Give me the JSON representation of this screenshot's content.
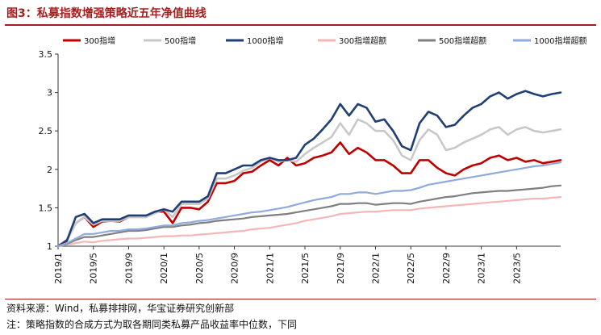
{
  "figure": {
    "title": "图3：私募指数增强策略近五年净值曲线",
    "source": "资料来源：Wind，私募排排网，华宝证券研究创新部",
    "note": "注：策略指数的合成方式为取各期同类私募产品收益率中位数，下同"
  },
  "chart_data": {
    "type": "line",
    "x_dates": [
      "2019/1",
      "2019/2",
      "2019/3",
      "2019/4",
      "2019/5",
      "2019/6",
      "2019/7",
      "2019/8",
      "2019/9",
      "2019/10",
      "2019/11",
      "2019/12",
      "2020/1",
      "2020/2",
      "2020/3",
      "2020/4",
      "2020/5",
      "2020/6",
      "2020/7",
      "2020/8",
      "2020/9",
      "2020/10",
      "2020/11",
      "2020/12",
      "2021/1",
      "2021/2",
      "2021/3",
      "2021/4",
      "2021/5",
      "2021/6",
      "2021/7",
      "2021/8",
      "2021/9",
      "2021/10",
      "2021/11",
      "2021/12",
      "2022/1",
      "2022/2",
      "2022/3",
      "2022/4",
      "2022/5",
      "2022/6",
      "2022/7",
      "2022/8",
      "2022/9",
      "2022/10",
      "2022/11",
      "2022/12",
      "2023/1",
      "2023/2",
      "2023/3",
      "2023/4",
      "2023/5",
      "2023/6",
      "2023/7",
      "2023/8",
      "2023/9",
      "2023/10"
    ],
    "x_tick_labels": [
      "2019/1",
      "2019/5",
      "2019/9",
      "2020/1",
      "2020/5",
      "2020/9",
      "2021/1",
      "2021/5",
      "2021/9",
      "2022/1",
      "2022/5",
      "2022/9",
      "2023/1",
      "2023/5"
    ],
    "ylim": [
      1,
      3.5
    ],
    "y_ticks": [
      "1",
      "1.5",
      "2",
      "2.5",
      "3",
      "3.5"
    ],
    "legend_position": "top",
    "grid": false,
    "series": [
      {
        "name": "300指增",
        "color": "#c00000",
        "values": [
          1.0,
          1.08,
          1.3,
          1.38,
          1.25,
          1.32,
          1.33,
          1.32,
          1.38,
          1.38,
          1.38,
          1.45,
          1.45,
          1.3,
          1.5,
          1.5,
          1.48,
          1.58,
          1.82,
          1.82,
          1.85,
          1.95,
          1.97,
          2.05,
          2.12,
          2.05,
          2.15,
          2.05,
          2.08,
          2.15,
          2.18,
          2.22,
          2.35,
          2.2,
          2.28,
          2.22,
          2.12,
          2.12,
          2.05,
          1.95,
          1.95,
          2.12,
          2.12,
          2.02,
          1.95,
          1.92,
          2.0,
          2.05,
          2.08,
          2.15,
          2.18,
          2.12,
          2.15,
          2.1,
          2.12,
          2.08,
          2.1,
          2.12
        ]
      },
      {
        "name": "500指增",
        "color": "#c8c8c8",
        "values": [
          1.0,
          1.07,
          1.3,
          1.38,
          1.28,
          1.33,
          1.33,
          1.33,
          1.38,
          1.38,
          1.38,
          1.43,
          1.48,
          1.38,
          1.55,
          1.55,
          1.55,
          1.62,
          1.88,
          1.88,
          1.92,
          1.98,
          2.02,
          2.1,
          2.15,
          2.1,
          2.12,
          2.1,
          2.2,
          2.28,
          2.35,
          2.42,
          2.6,
          2.45,
          2.65,
          2.6,
          2.5,
          2.5,
          2.38,
          2.18,
          2.12,
          2.38,
          2.52,
          2.45,
          2.25,
          2.28,
          2.35,
          2.4,
          2.45,
          2.52,
          2.55,
          2.45,
          2.52,
          2.55,
          2.5,
          2.48,
          2.5,
          2.52
        ]
      },
      {
        "name": "1000指增",
        "color": "#1f3f75",
        "values": [
          1.0,
          1.07,
          1.38,
          1.42,
          1.3,
          1.35,
          1.35,
          1.35,
          1.4,
          1.4,
          1.4,
          1.45,
          1.48,
          1.45,
          1.58,
          1.58,
          1.58,
          1.65,
          1.95,
          1.95,
          2.0,
          2.05,
          2.05,
          2.12,
          2.15,
          2.12,
          2.12,
          2.15,
          2.32,
          2.4,
          2.52,
          2.65,
          2.85,
          2.7,
          2.85,
          2.8,
          2.62,
          2.65,
          2.5,
          2.3,
          2.25,
          2.6,
          2.75,
          2.7,
          2.55,
          2.58,
          2.7,
          2.8,
          2.85,
          2.95,
          3.0,
          2.92,
          2.98,
          3.02,
          2.98,
          2.95,
          2.98,
          3.0
        ]
      },
      {
        "name": "300指增超额",
        "color": "#f4b6b6",
        "values": [
          1.0,
          1.02,
          1.04,
          1.06,
          1.05,
          1.07,
          1.08,
          1.09,
          1.1,
          1.1,
          1.11,
          1.12,
          1.13,
          1.13,
          1.14,
          1.14,
          1.15,
          1.16,
          1.17,
          1.18,
          1.19,
          1.2,
          1.22,
          1.23,
          1.24,
          1.26,
          1.28,
          1.3,
          1.33,
          1.35,
          1.37,
          1.39,
          1.42,
          1.43,
          1.44,
          1.45,
          1.45,
          1.46,
          1.47,
          1.47,
          1.47,
          1.49,
          1.5,
          1.51,
          1.52,
          1.53,
          1.54,
          1.55,
          1.56,
          1.57,
          1.58,
          1.59,
          1.6,
          1.61,
          1.62,
          1.62,
          1.63,
          1.64
        ]
      },
      {
        "name": "500指增超额",
        "color": "#7f7f7f",
        "values": [
          1.0,
          1.03,
          1.08,
          1.12,
          1.12,
          1.14,
          1.16,
          1.18,
          1.2,
          1.2,
          1.21,
          1.23,
          1.25,
          1.25,
          1.27,
          1.28,
          1.3,
          1.31,
          1.33,
          1.34,
          1.35,
          1.36,
          1.38,
          1.39,
          1.4,
          1.41,
          1.42,
          1.44,
          1.46,
          1.48,
          1.5,
          1.52,
          1.55,
          1.55,
          1.56,
          1.56,
          1.54,
          1.55,
          1.56,
          1.56,
          1.55,
          1.58,
          1.6,
          1.62,
          1.64,
          1.65,
          1.67,
          1.69,
          1.7,
          1.71,
          1.72,
          1.72,
          1.73,
          1.74,
          1.75,
          1.76,
          1.78,
          1.79
        ]
      },
      {
        "name": "1000指增超额",
        "color": "#8faadc",
        "values": [
          1.0,
          1.04,
          1.1,
          1.16,
          1.16,
          1.18,
          1.2,
          1.2,
          1.22,
          1.22,
          1.23,
          1.25,
          1.27,
          1.27,
          1.3,
          1.31,
          1.33,
          1.34,
          1.36,
          1.38,
          1.4,
          1.42,
          1.44,
          1.45,
          1.47,
          1.49,
          1.51,
          1.54,
          1.57,
          1.6,
          1.62,
          1.64,
          1.68,
          1.68,
          1.7,
          1.7,
          1.68,
          1.7,
          1.72,
          1.72,
          1.73,
          1.76,
          1.8,
          1.82,
          1.84,
          1.86,
          1.88,
          1.9,
          1.92,
          1.94,
          1.96,
          1.98,
          2.0,
          2.02,
          2.04,
          2.05,
          2.07,
          2.09
        ]
      }
    ]
  }
}
